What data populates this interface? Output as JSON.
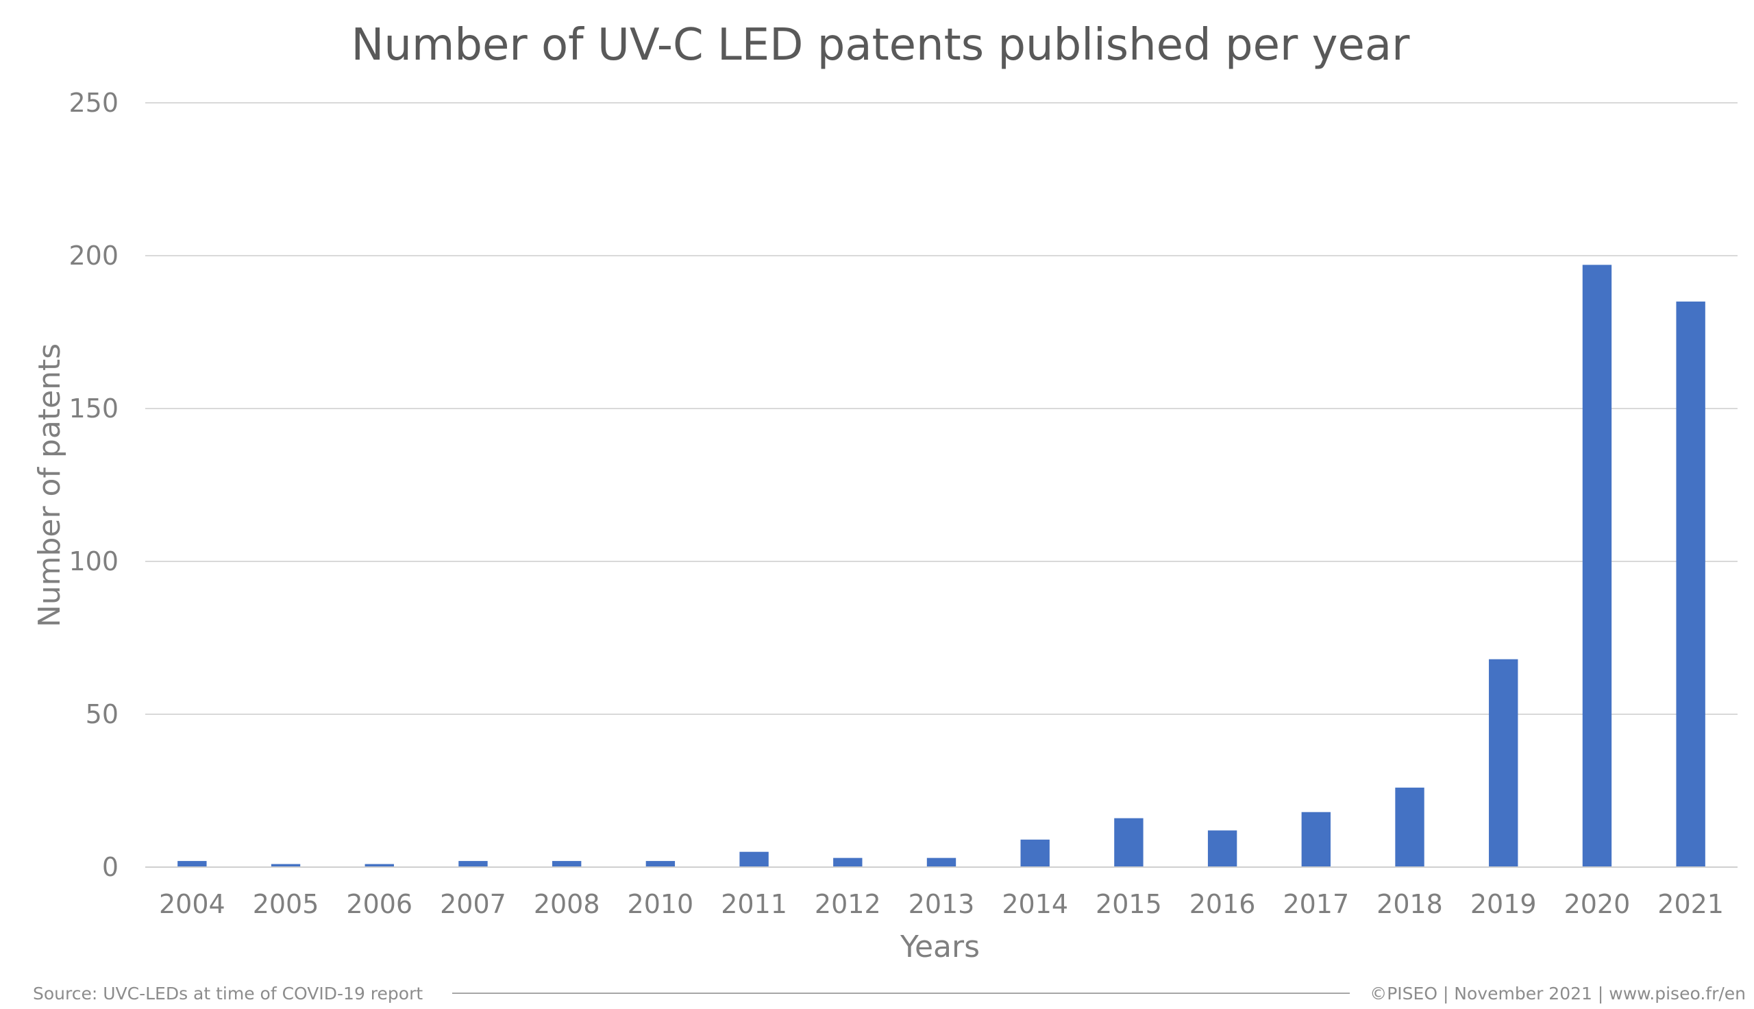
{
  "chart_data": {
    "type": "bar",
    "title": "Number of UV-C LED patents published per year",
    "xlabel": "Years",
    "ylabel": "Number of patents",
    "categories": [
      "2004",
      "2005",
      "2006",
      "2007",
      "2008",
      "2010",
      "2011",
      "2012",
      "2013",
      "2014",
      "2015",
      "2016",
      "2017",
      "2018",
      "2019",
      "2020",
      "2021"
    ],
    "values": [
      2,
      1,
      1,
      2,
      2,
      2,
      5,
      3,
      3,
      9,
      16,
      12,
      18,
      26,
      68,
      197,
      185
    ],
    "ylim": [
      0,
      250
    ],
    "yticks": [
      "0",
      "50",
      "100",
      "150",
      "200",
      "250"
    ],
    "grid": true,
    "legend": "none",
    "bar_color": "#4472c4"
  },
  "footer": {
    "source": "Source: UVC-LEDs at time of COVID-19 report",
    "credit": "©PISEO | November 2021 | www.piseo.fr/en"
  }
}
